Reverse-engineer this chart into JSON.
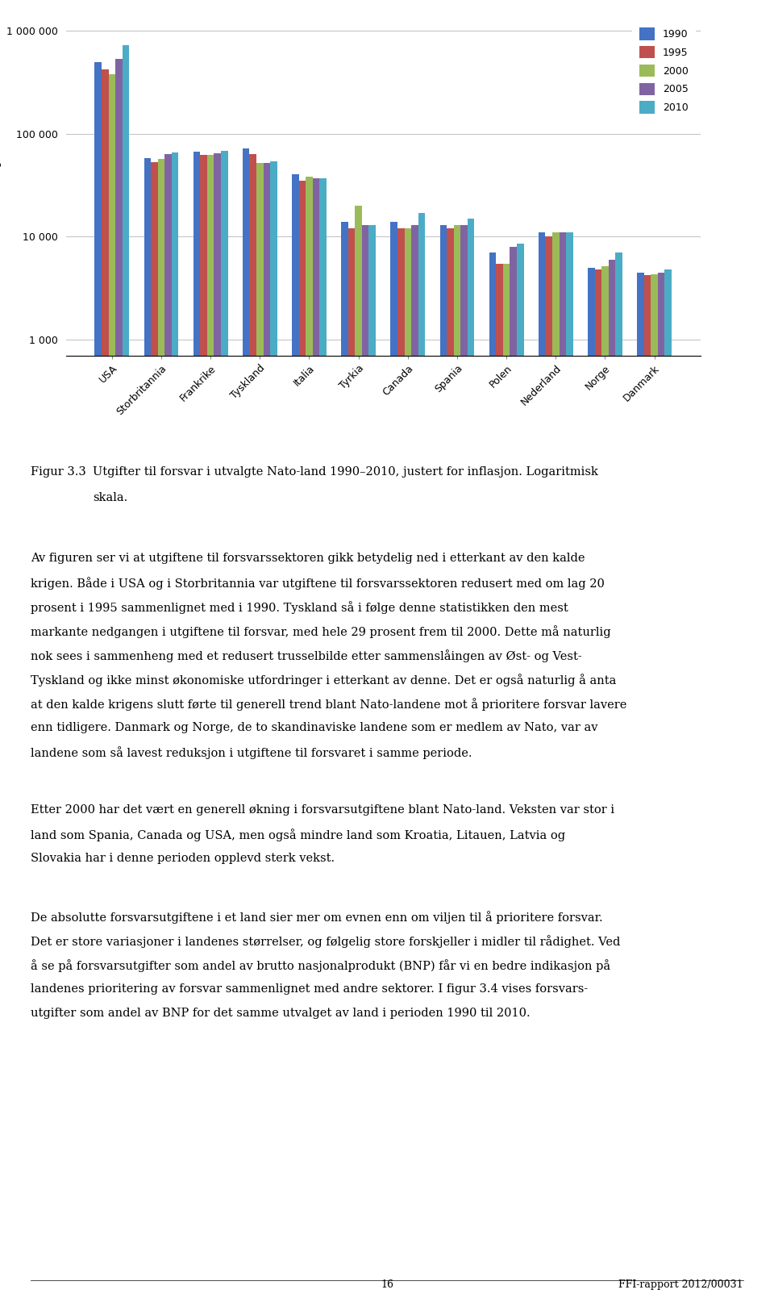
{
  "categories": [
    "USA",
    "Storbritannia",
    "Frankrike",
    "Tyskland",
    "Italia",
    "Tyrkia",
    "Canada",
    "Spania",
    "Polen",
    "Nederland",
    "Norge",
    "Danmark"
  ],
  "years": [
    1990,
    1995,
    2000,
    2005,
    2010
  ],
  "values": {
    "USA": [
      493000,
      420000,
      380000,
      530000,
      720000
    ],
    "Storbritannia": [
      58000,
      53000,
      57000,
      63000,
      66000
    ],
    "Frankrike": [
      67000,
      62000,
      62000,
      65000,
      68000
    ],
    "Tyskland": [
      72000,
      63000,
      52000,
      52000,
      54000
    ],
    "Italia": [
      40000,
      35000,
      38000,
      37000,
      37000
    ],
    "Tyrkia": [
      14000,
      12000,
      20000,
      13000,
      13000
    ],
    "Canada": [
      14000,
      12000,
      12000,
      13000,
      17000
    ],
    "Spania": [
      13000,
      12000,
      13000,
      13000,
      15000
    ],
    "Polen": [
      7000,
      5500,
      5500,
      8000,
      8500
    ],
    "Nederland": [
      11000,
      10000,
      11000,
      11000,
      11000
    ],
    "Norge": [
      5000,
      4800,
      5200,
      6000,
      7000
    ],
    "Danmark": [
      4500,
      4200,
      4300,
      4500,
      4800
    ]
  },
  "colors": [
    "#4472C4",
    "#C0504D",
    "#9BBB59",
    "#8064A2",
    "#4BACC6"
  ],
  "yticks": [
    1000,
    10000,
    100000,
    1000000
  ],
  "ytick_labels": [
    "1 000",
    "10 000",
    "100 000",
    "1 000 000"
  ],
  "legend_labels": [
    "1990",
    "1995",
    "2000",
    "2005",
    "2010"
  ],
  "caption_label": "Figur 3.3",
  "caption_text": "Utgifter til forsvar i utvalgte Nato-land 1990–2010, justert for inflasjon. Logaritmisk",
  "caption_text2": "skala.",
  "para1_lines": [
    "Av figuren ser vi at utgiftene til forsvarssektoren gikk betydelig ned i etterkant av den kalde",
    "krigen. Både i USA og i Storbritannia var utgiftene til forsvarssektoren redusert med om lag 20",
    "prosent i 1995 sammenlignet med i 1990. Tyskland så i følge denne statistikken den mest",
    "markante nedgangen i utgiftene til forsvar, med hele 29 prosent frem til 2000. Dette må naturlig",
    "nok sees i sammenheng med et redusert trusselbilde etter sammenslåingen av Øst- og Vest-",
    "Tyskland og ikke minst økonomiske utfordringer i etterkant av denne. Det er også naturlig å anta",
    "at den kalde krigens slutt førte til generell trend blant Nato-landene mot å prioritere forsvar lavere",
    "enn tidligere. Danmark og Norge, de to skandinaviske landene som er medlem av Nato, var av",
    "landene som så lavest reduksjon i utgiftene til forsvaret i samme periode."
  ],
  "para2_lines": [
    "Etter 2000 har det vært en generell økning i forsvarsutgiftene blant Nato-land. Veksten var stor i",
    "land som Spania, Canada og USA, men også mindre land som Kroatia, Litauen, Latvia og",
    "Slovakia har i denne perioden opplevd sterk vekst."
  ],
  "para3_lines": [
    "De absolutte forsvarsutgiftene i et land sier mer om evnen enn om viljen til å prioritere forsvar.",
    "Det er store variasjoner i landenes størrelser, og følgelig store forskjeller i midler til rådighet. Ved",
    "å se på forsvarsutgifter som andel av brutto nasjonalprodukt (BNP) får vi en bedre indikasjon på",
    "landenes prioritering av forsvar sammenlignet med andre sektorer. I figur 3.4 vises forsvars-",
    "utgifter som andel av BNP for det samme utvalget av land i perioden 1990 til 2010."
  ],
  "page_number": "16",
  "report_id": "FFI-rapport 2012/00031",
  "background_color": "#ffffff",
  "grid_color": "#C0C0C0",
  "fig_width": 9.6,
  "fig_height": 16.09,
  "fig_dpi": 100
}
